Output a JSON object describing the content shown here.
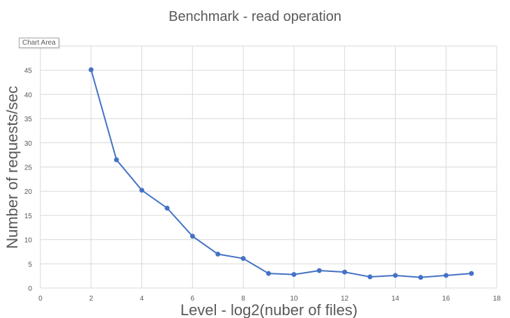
{
  "tooltip": {
    "label": "Chart Area"
  },
  "chart_data": {
    "type": "line",
    "title": "Benchmark - read operation",
    "xlabel": "Level - log2(nuber  of  files)",
    "ylabel": "Number of requests/sec",
    "xlim": [
      0,
      18
    ],
    "ylim": [
      0,
      50
    ],
    "xticks": [
      0,
      2,
      4,
      6,
      8,
      10,
      12,
      14,
      16,
      18
    ],
    "yticks": [
      0,
      5,
      10,
      15,
      20,
      25,
      30,
      35,
      40,
      45
    ],
    "grid": true,
    "legend": "none",
    "color": "#4472c4",
    "series": [
      {
        "x": [
          2,
          3,
          4,
          5,
          6,
          7,
          8,
          9,
          10,
          11,
          12,
          13,
          14,
          15,
          16,
          17
        ],
        "y": [
          45.1,
          26.5,
          20.2,
          16.5,
          10.7,
          7.0,
          6.1,
          3.0,
          2.8,
          3.6,
          3.3,
          2.3,
          2.6,
          2.2,
          2.6,
          3.0
        ]
      }
    ]
  }
}
